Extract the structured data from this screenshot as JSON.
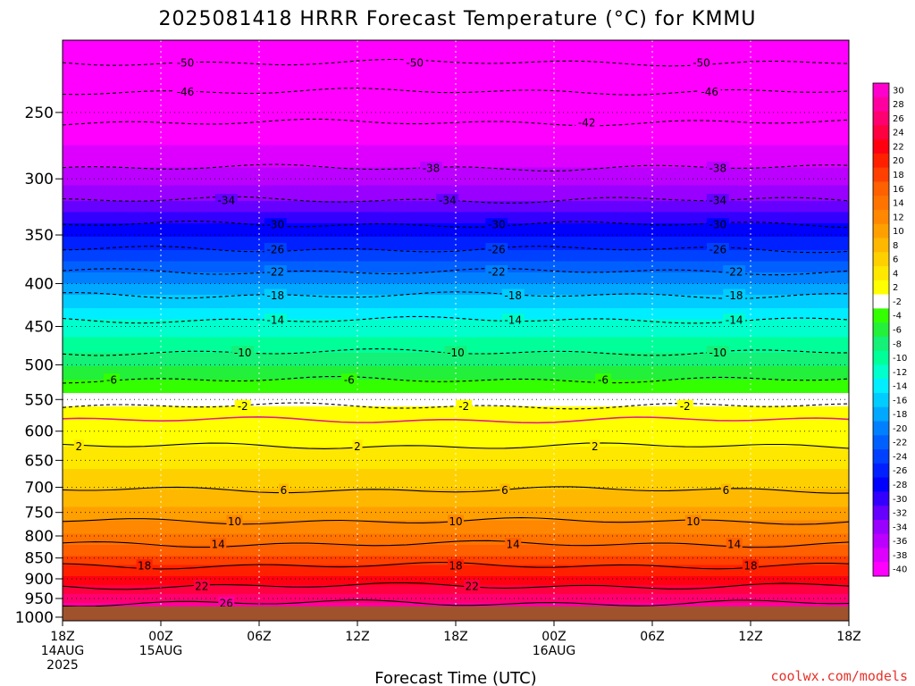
{
  "title": "2025081418 HRRR Forecast Temperature (°C) for KMMU",
  "credit": "coolwx.com/models",
  "credit_color": "#e8312a",
  "ground_color": "#a0522d",
  "chart_data": {
    "type": "heatmap",
    "xlabel": "Forecast Time (UTC)",
    "ylabel": "",
    "y_scale": "log-pressure",
    "ylim": [
      1010,
      205
    ],
    "xlim": [
      0,
      48
    ],
    "y_ticks": [
      250,
      300,
      350,
      400,
      450,
      500,
      550,
      600,
      650,
      700,
      750,
      800,
      850,
      900,
      950,
      1000
    ],
    "x_ticks": [
      {
        "hour": 0,
        "lines": [
          "18Z",
          "14AUG",
          "2025"
        ]
      },
      {
        "hour": 6,
        "lines": [
          "00Z",
          "15AUG"
        ]
      },
      {
        "hour": 12,
        "lines": [
          "06Z"
        ]
      },
      {
        "hour": 18,
        "lines": [
          "12Z"
        ]
      },
      {
        "hour": 24,
        "lines": [
          "18Z"
        ]
      },
      {
        "hour": 30,
        "lines": [
          "00Z",
          "16AUG"
        ]
      },
      {
        "hour": 36,
        "lines": [
          "06Z"
        ]
      },
      {
        "hour": 42,
        "lines": [
          "12Z"
        ]
      },
      {
        "hour": 48,
        "lines": [
          "18Z"
        ]
      }
    ],
    "colorbar": {
      "levels": [
        "30",
        "28",
        "26",
        "24",
        "22",
        "20",
        "18",
        "16",
        "14",
        "12",
        "10",
        "8",
        "6",
        "4",
        "2",
        "-2",
        "-4",
        "-6",
        "-8",
        "-10",
        "-12",
        "-14",
        "-16",
        "-18",
        "-20",
        "-22",
        "-24",
        "-26",
        "-28",
        "-30",
        "-32",
        "-34",
        "-36",
        "-38",
        "-40"
      ],
      "colors": [
        "#ff00cc",
        "#ff00a0",
        "#ff0070",
        "#ff0040",
        "#ff0010",
        "#ff2000",
        "#ff4000",
        "#ff6000",
        "#ff7400",
        "#ff8800",
        "#ffa000",
        "#ffb800",
        "#ffd000",
        "#ffe800",
        "#ffff00",
        "#ffffff",
        "#33ff00",
        "#22f03a",
        "#14f078",
        "#00ff99",
        "#00ffcc",
        "#00eeff",
        "#00ccff",
        "#00a8ff",
        "#0080ff",
        "#0060ff",
        "#0040ff",
        "#0020ff",
        "#0000ff",
        "#3300ff",
        "#6600ff",
        "#9900ff",
        "#bb00ff",
        "#dd00ff",
        "#ff00ff"
      ]
    },
    "isotherms": [
      {
        "value": -50,
        "dashed": true,
        "pressure": 218,
        "labels": [
          {
            "hour": 7.5
          },
          {
            "hour": 21.5
          },
          {
            "hour": 39
          }
        ]
      },
      {
        "value": -46,
        "dashed": true,
        "pressure": 236,
        "labels": [
          {
            "hour": 7.5
          },
          {
            "hour": 39.5
          }
        ]
      },
      {
        "value": -42,
        "dashed": true,
        "pressure": 257,
        "labels": [
          {
            "hour": 32
          }
        ]
      },
      {
        "value": -38,
        "dashed": true,
        "pressure": 291,
        "labels": [
          {
            "hour": 22.5
          },
          {
            "hour": 40
          }
        ]
      },
      {
        "value": -34,
        "dashed": true,
        "pressure": 318,
        "labels": [
          {
            "hour": 10
          },
          {
            "hour": 23.5
          },
          {
            "hour": 40
          }
        ]
      },
      {
        "value": -30,
        "dashed": true,
        "pressure": 340,
        "labels": [
          {
            "hour": 13
          },
          {
            "hour": 26.5
          },
          {
            "hour": 40
          }
        ]
      },
      {
        "value": -26,
        "dashed": true,
        "pressure": 364,
        "labels": [
          {
            "hour": 13
          },
          {
            "hour": 26.5
          },
          {
            "hour": 40
          }
        ]
      },
      {
        "value": -22,
        "dashed": true,
        "pressure": 387,
        "labels": [
          {
            "hour": 13
          },
          {
            "hour": 26.5
          },
          {
            "hour": 41
          }
        ]
      },
      {
        "value": -18,
        "dashed": true,
        "pressure": 413,
        "labels": [
          {
            "hour": 13
          },
          {
            "hour": 27.5
          },
          {
            "hour": 41
          }
        ]
      },
      {
        "value": -14,
        "dashed": true,
        "pressure": 442,
        "labels": [
          {
            "hour": 13
          },
          {
            "hour": 27.5
          },
          {
            "hour": 41
          }
        ]
      },
      {
        "value": -10,
        "dashed": true,
        "pressure": 483,
        "labels": [
          {
            "hour": 11
          },
          {
            "hour": 24
          },
          {
            "hour": 40
          }
        ]
      },
      {
        "value": -6,
        "dashed": true,
        "pressure": 521,
        "labels": [
          {
            "hour": 3
          },
          {
            "hour": 17.5
          },
          {
            "hour": 33
          }
        ]
      },
      {
        "value": -2,
        "dashed": true,
        "pressure": 560,
        "labels": [
          {
            "hour": 11
          },
          {
            "hour": 24.5
          },
          {
            "hour": 38
          }
        ]
      },
      {
        "value": 2,
        "dashed": false,
        "color": "#e0208a",
        "pressure": 582,
        "labels": []
      },
      {
        "value": 2,
        "dashed": false,
        "pressure": 625,
        "labels": [
          {
            "hour": 1
          },
          {
            "hour": 18
          },
          {
            "hour": 32.5
          }
        ]
      },
      {
        "value": 6,
        "dashed": false,
        "pressure": 705,
        "labels": [
          {
            "hour": 13.5
          },
          {
            "hour": 27
          },
          {
            "hour": 40.5
          }
        ]
      },
      {
        "value": 10,
        "dashed": false,
        "pressure": 768,
        "labels": [
          {
            "hour": 10.5
          },
          {
            "hour": 24
          },
          {
            "hour": 38.5
          }
        ]
      },
      {
        "value": 14,
        "dashed": false,
        "pressure": 818,
        "labels": [
          {
            "hour": 9.5
          },
          {
            "hour": 27.5
          },
          {
            "hour": 41
          }
        ]
      },
      {
        "value": 18,
        "dashed": false,
        "pressure": 868,
        "labels": [
          {
            "hour": 5
          },
          {
            "hour": 24
          },
          {
            "hour": 42
          }
        ]
      },
      {
        "value": 22,
        "dashed": false,
        "pressure": 918,
        "labels": [
          {
            "hour": 8.5
          },
          {
            "hour": 25
          }
        ]
      },
      {
        "value": 26,
        "dashed": false,
        "pressure": 962,
        "labels": [
          {
            "hour": 10
          }
        ]
      }
    ]
  }
}
